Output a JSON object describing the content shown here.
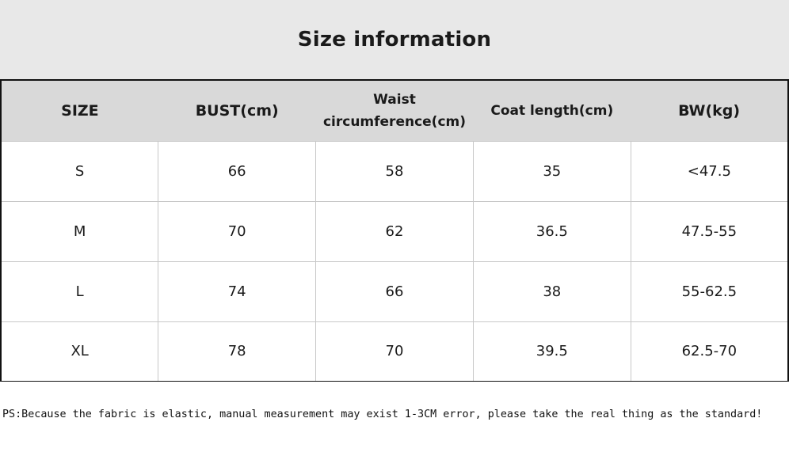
{
  "title": "Size information",
  "table": {
    "headers": [
      "SIZE",
      "BUST(cm)",
      "Waist circumference(cm)",
      "Coat length(cm)",
      "BW(kg)"
    ],
    "rows": [
      [
        "S",
        "66",
        "58",
        "35",
        "<47.5"
      ],
      [
        "M",
        "70",
        "62",
        "36.5",
        "47.5-55"
      ],
      [
        "L",
        "74",
        "66",
        "38",
        "55-62.5"
      ],
      [
        "XL",
        "78",
        "70",
        "39.5",
        "62.5-70"
      ]
    ]
  },
  "note": "PS:Because the fabric is elastic, manual measurement may exist 1-3CM error, please take the real thing as the standard!"
}
